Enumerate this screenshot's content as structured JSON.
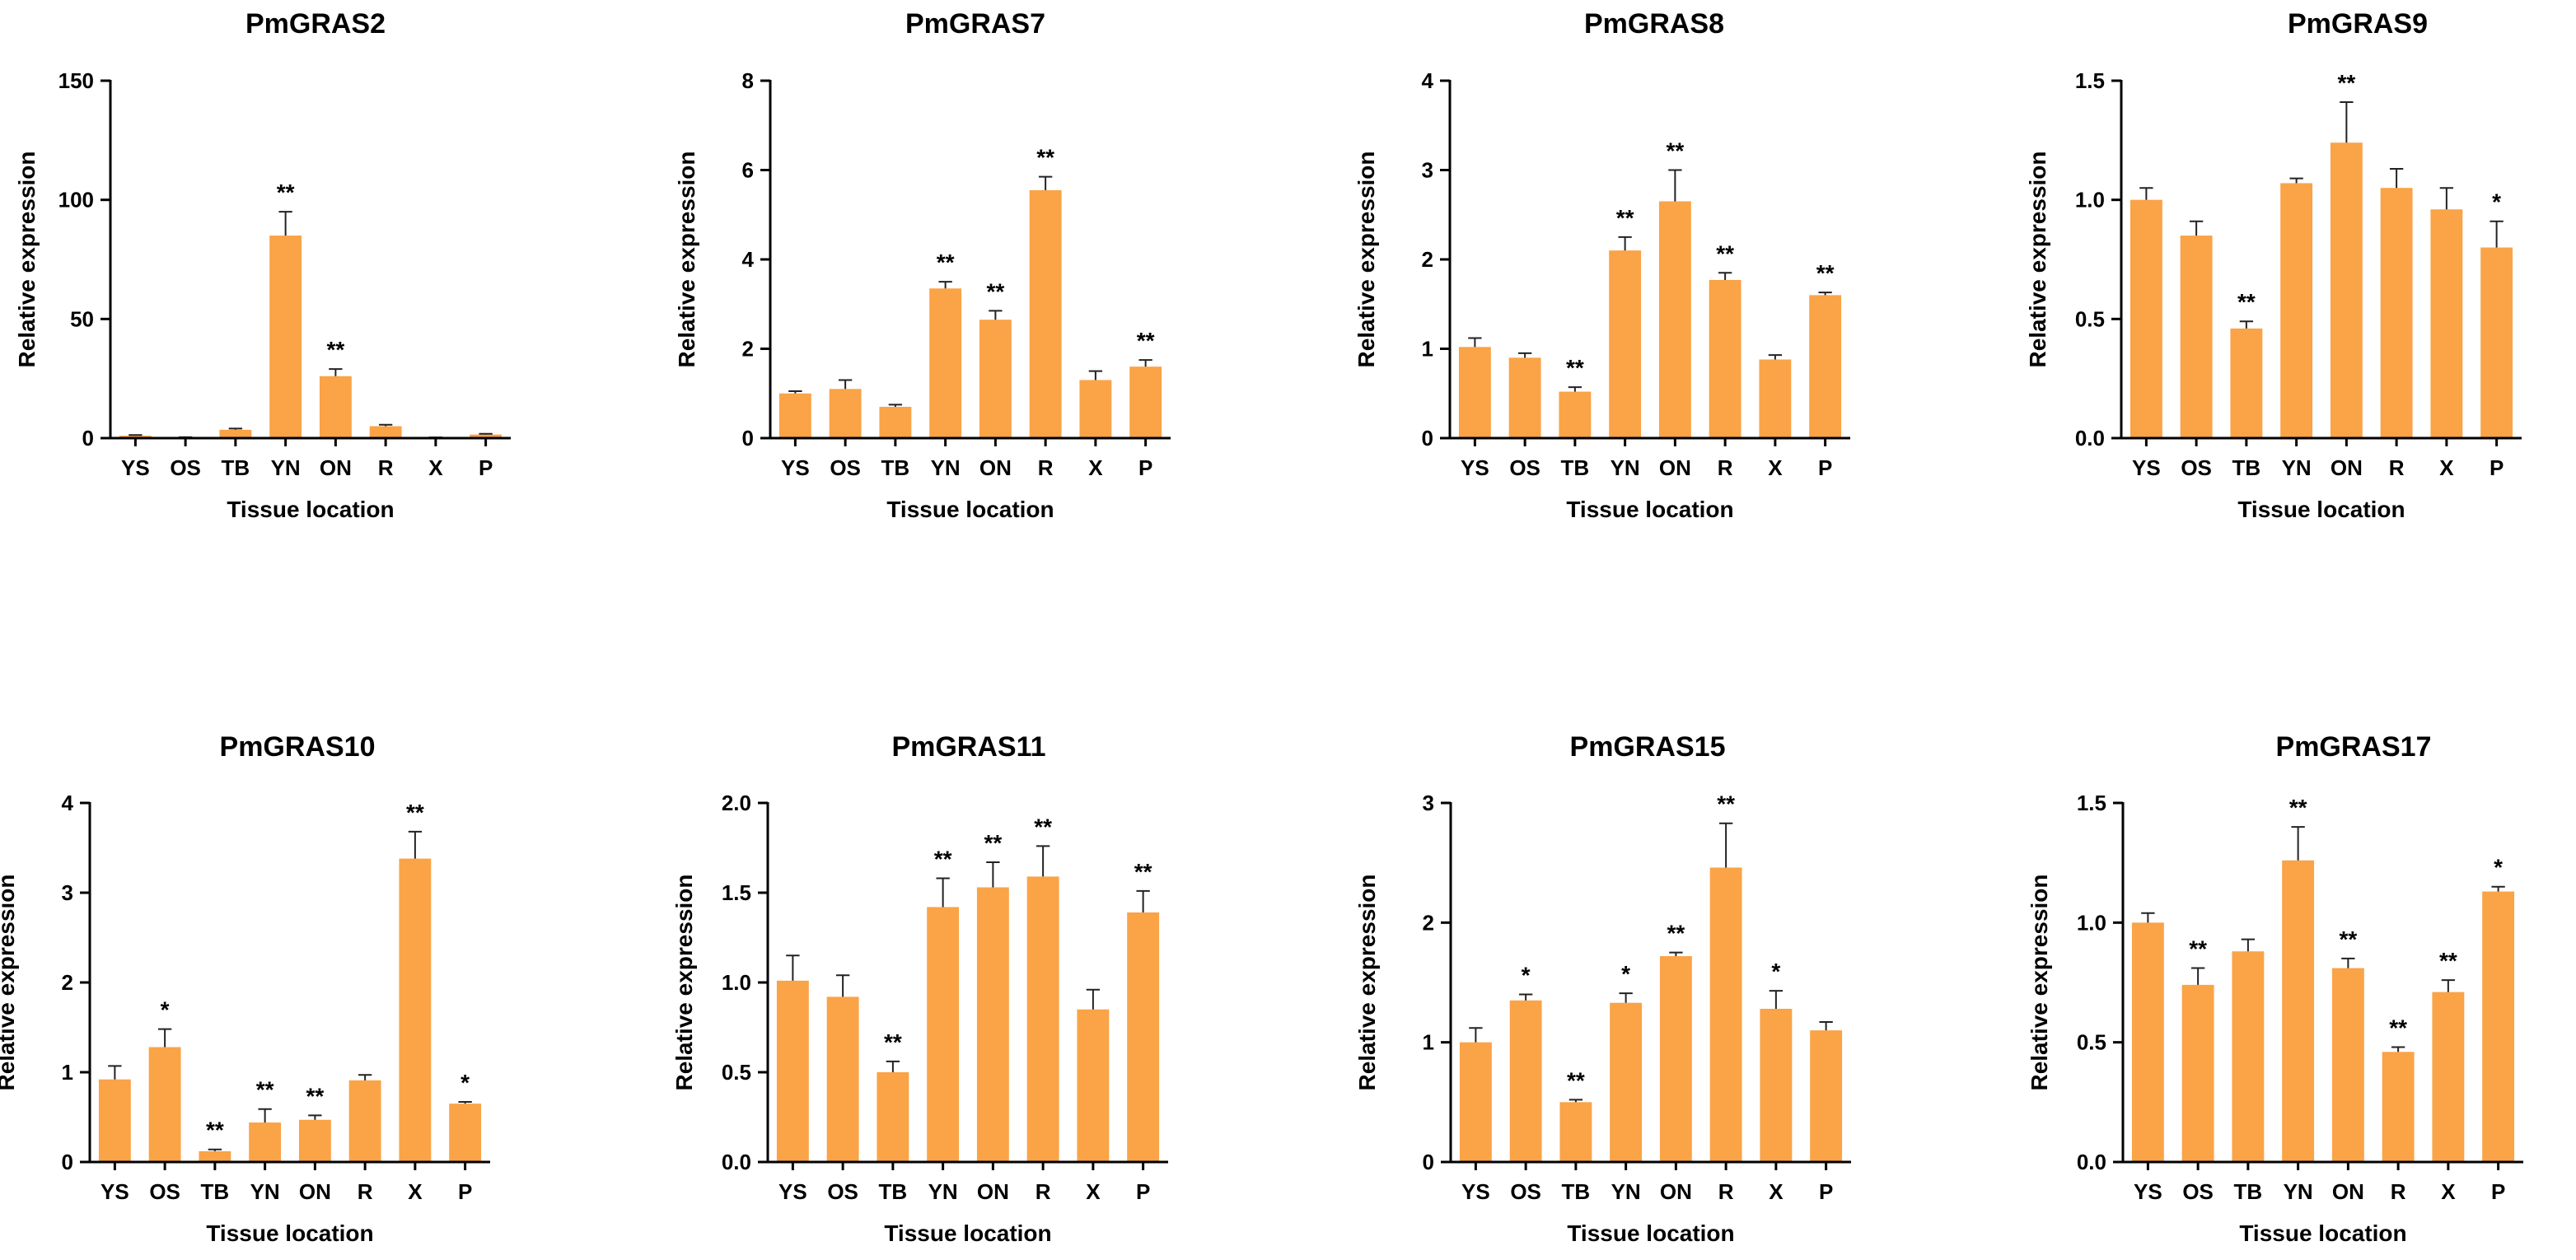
{
  "style": {
    "bar_color": "#FAA347",
    "axis_color": "#000000"
  },
  "chart_data": [
    {
      "type": "bar",
      "title": "PmGRAS2",
      "xlabel": "Tissue location",
      "ylabel": "Relative expression",
      "categories": [
        "YS",
        "OS",
        "TB",
        "YN",
        "ON",
        "R",
        "X",
        "P"
      ],
      "values": [
        1,
        0.3,
        3.5,
        85,
        26,
        5,
        0.2,
        1.5
      ],
      "errors": [
        0.3,
        0.1,
        0.5,
        10,
        3,
        0.6,
        0.1,
        0.3
      ],
      "significance": [
        "",
        "",
        "",
        "**",
        "**",
        "",
        "",
        ""
      ],
      "ylim": [
        0,
        150
      ],
      "yticks": [
        0,
        50,
        100,
        150
      ],
      "ytick_labels": [
        "0",
        "50",
        "100",
        "150"
      ]
    },
    {
      "type": "bar",
      "title": "PmGRAS7",
      "xlabel": "Tissue location",
      "ylabel": "Relative expression",
      "categories": [
        "YS",
        "OS",
        "TB",
        "YN",
        "ON",
        "R",
        "X",
        "P"
      ],
      "values": [
        1,
        1.1,
        0.7,
        3.35,
        2.65,
        5.55,
        1.3,
        1.6
      ],
      "errors": [
        0.05,
        0.2,
        0.05,
        0.15,
        0.2,
        0.3,
        0.2,
        0.15
      ],
      "significance": [
        "",
        "",
        "",
        "**",
        "**",
        "**",
        "",
        "**"
      ],
      "ylim": [
        0,
        8
      ],
      "yticks": [
        0,
        2,
        4,
        6,
        8
      ],
      "ytick_labels": [
        "0",
        "2",
        "4",
        "6",
        "8"
      ]
    },
    {
      "type": "bar",
      "title": "PmGRAS8",
      "xlabel": "Tissue location",
      "ylabel": "Relative expression",
      "categories": [
        "YS",
        "OS",
        "TB",
        "YN",
        "ON",
        "R",
        "X",
        "P"
      ],
      "values": [
        1.02,
        0.9,
        0.52,
        2.1,
        2.65,
        1.77,
        0.88,
        1.6
      ],
      "errors": [
        0.1,
        0.05,
        0.05,
        0.15,
        0.35,
        0.08,
        0.05,
        0.03
      ],
      "significance": [
        "",
        "",
        "**",
        "**",
        "**",
        "**",
        "",
        "**"
      ],
      "ylim": [
        0,
        4
      ],
      "yticks": [
        0,
        1,
        2,
        3,
        4
      ],
      "ytick_labels": [
        "0",
        "1",
        "2",
        "3",
        "4"
      ]
    },
    {
      "type": "bar",
      "title": "PmGRAS9",
      "xlabel": "Tissue location",
      "ylabel": "Relative expression",
      "categories": [
        "YS",
        "OS",
        "TB",
        "YN",
        "ON",
        "R",
        "X",
        "P"
      ],
      "values": [
        1.0,
        0.85,
        0.46,
        1.07,
        1.24,
        1.05,
        0.96,
        0.8
      ],
      "errors": [
        0.05,
        0.06,
        0.03,
        0.02,
        0.17,
        0.08,
        0.09,
        0.11
      ],
      "significance": [
        "",
        "",
        "**",
        "",
        "**",
        "",
        "",
        "*"
      ],
      "ylim": [
        0,
        1.5
      ],
      "yticks": [
        0,
        0.5,
        1.0,
        1.5
      ],
      "ytick_labels": [
        "0.0",
        "0.5",
        "1.0",
        "1.5"
      ]
    },
    {
      "type": "bar",
      "title": "PmGRAS10",
      "xlabel": "Tissue location",
      "ylabel": "Relative expression",
      "categories": [
        "YS",
        "OS",
        "TB",
        "YN",
        "ON",
        "R",
        "X",
        "P"
      ],
      "values": [
        0.92,
        1.28,
        0.12,
        0.44,
        0.47,
        0.91,
        3.38,
        0.65
      ],
      "errors": [
        0.15,
        0.2,
        0.02,
        0.15,
        0.05,
        0.06,
        0.3,
        0.02
      ],
      "significance": [
        "",
        "*",
        "**",
        "**",
        "**",
        "",
        "**",
        "*"
      ],
      "ylim": [
        0,
        4
      ],
      "yticks": [
        0,
        1,
        2,
        3,
        4
      ],
      "ytick_labels": [
        "0",
        "1",
        "2",
        "3",
        "4"
      ]
    },
    {
      "type": "bar",
      "title": "PmGRAS11",
      "xlabel": "Tissue location",
      "ylabel": "Relative expression",
      "categories": [
        "YS",
        "OS",
        "TB",
        "YN",
        "ON",
        "R",
        "X",
        "P"
      ],
      "values": [
        1.01,
        0.92,
        0.5,
        1.42,
        1.53,
        1.59,
        0.85,
        1.39
      ],
      "errors": [
        0.14,
        0.12,
        0.06,
        0.16,
        0.14,
        0.17,
        0.11,
        0.12
      ],
      "significance": [
        "",
        "",
        "**",
        "**",
        "**",
        "**",
        "",
        "**"
      ],
      "ylim": [
        0,
        2.0
      ],
      "yticks": [
        0,
        0.5,
        1.0,
        1.5,
        2.0
      ],
      "ytick_labels": [
        "0.0",
        "0.5",
        "1.0",
        "1.5",
        "2.0"
      ]
    },
    {
      "type": "bar",
      "title": "PmGRAS15",
      "xlabel": "Tissue location",
      "ylabel": "Relative expression",
      "categories": [
        "YS",
        "OS",
        "TB",
        "YN",
        "ON",
        "R",
        "X",
        "P"
      ],
      "values": [
        1.0,
        1.35,
        0.5,
        1.33,
        1.72,
        2.46,
        1.28,
        1.1
      ],
      "errors": [
        0.12,
        0.05,
        0.02,
        0.08,
        0.03,
        0.37,
        0.15,
        0.07
      ],
      "significance": [
        "",
        "*",
        "**",
        "*",
        "**",
        "**",
        "*",
        ""
      ],
      "ylim": [
        0,
        3
      ],
      "yticks": [
        0,
        1,
        2,
        3
      ],
      "ytick_labels": [
        "0",
        "1",
        "2",
        "3"
      ]
    },
    {
      "type": "bar",
      "title": "PmGRAS17",
      "xlabel": "Tissue location",
      "ylabel": "Relative expression",
      "categories": [
        "YS",
        "OS",
        "TB",
        "YN",
        "ON",
        "R",
        "X",
        "P"
      ],
      "values": [
        1.0,
        0.74,
        0.88,
        1.26,
        0.81,
        0.46,
        0.71,
        1.13
      ],
      "errors": [
        0.04,
        0.07,
        0.05,
        0.14,
        0.04,
        0.02,
        0.05,
        0.02
      ],
      "significance": [
        "",
        "**",
        "",
        "**",
        "**",
        "**",
        "**",
        "*"
      ],
      "ylim": [
        0,
        1.5
      ],
      "yticks": [
        0,
        0.5,
        1.0,
        1.5
      ],
      "ytick_labels": [
        "0.0",
        "0.5",
        "1.0",
        "1.5"
      ]
    }
  ]
}
